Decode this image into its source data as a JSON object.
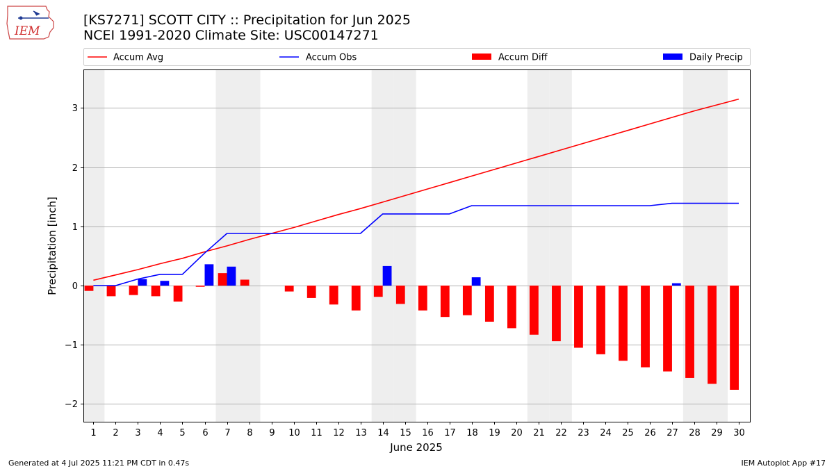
{
  "header": {
    "logo_text": "IEM",
    "title_line1": "[KS7271] SCOTT CITY :: Precipitation for Jun 2025",
    "title_line2": "NCEI 1991-2020 Climate Site: USC00147271"
  },
  "footer": {
    "left": "Generated at 4 Jul 2025 11:21 PM CDT in 0.47s",
    "right": "IEM Autoplot App #17"
  },
  "colors": {
    "accum_avg": "#ff0000",
    "accum_obs": "#0000ff",
    "accum_diff": "#ff0000",
    "daily_precip": "#0000ff",
    "weekend_shade": "#eeeeee",
    "grid": "#b0b0b0"
  },
  "chart_data": {
    "type": "bar",
    "xlabel": "June 2025",
    "ylabel": "Precipitation [inch]",
    "ylim": [
      -2.3,
      3.65
    ],
    "yticks": [
      -2,
      -1,
      0,
      1,
      2,
      3
    ],
    "ytick_labels": [
      "−2",
      "−1",
      "0",
      "1",
      "2",
      "3"
    ],
    "x": [
      1,
      2,
      3,
      4,
      5,
      6,
      7,
      8,
      9,
      10,
      11,
      12,
      13,
      14,
      15,
      16,
      17,
      18,
      19,
      20,
      21,
      22,
      23,
      24,
      25,
      26,
      27,
      28,
      29,
      30
    ],
    "weekend_days": [
      1,
      7,
      8,
      14,
      15,
      21,
      22,
      28,
      29
    ],
    "grid": "horizontal",
    "legend_position": "top",
    "series": [
      {
        "name": "Accum Avg",
        "kind": "line",
        "values": [
          0.09,
          0.18,
          0.27,
          0.37,
          0.46,
          0.57,
          0.67,
          0.78,
          0.88,
          0.98,
          1.09,
          1.2,
          1.3,
          1.41,
          1.52,
          1.63,
          1.74,
          1.85,
          1.96,
          2.07,
          2.18,
          2.29,
          2.4,
          2.51,
          2.62,
          2.73,
          2.84,
          2.95,
          3.05,
          3.15
        ]
      },
      {
        "name": "Accum Obs",
        "kind": "line",
        "values": [
          0,
          0,
          0.11,
          0.19,
          0.19,
          0.55,
          0.88,
          0.88,
          0.88,
          0.88,
          0.88,
          0.88,
          0.88,
          1.21,
          1.21,
          1.21,
          1.21,
          1.35,
          1.35,
          1.35,
          1.35,
          1.35,
          1.35,
          1.35,
          1.35,
          1.35,
          1.39,
          1.39,
          1.39,
          1.39
        ]
      },
      {
        "name": "Accum Diff",
        "kind": "bar",
        "values": [
          -0.09,
          -0.18,
          -0.16,
          -0.18,
          -0.27,
          -0.02,
          0.21,
          0.1,
          0,
          -0.1,
          -0.21,
          -0.32,
          -0.42,
          -0.19,
          -0.31,
          -0.42,
          -0.53,
          -0.5,
          -0.61,
          -0.72,
          -0.83,
          -0.94,
          -1.05,
          -1.16,
          -1.27,
          -1.38,
          -1.45,
          -1.56,
          -1.66,
          -1.76
        ]
      },
      {
        "name": "Daily Precip",
        "kind": "bar",
        "values": [
          0,
          0,
          0.11,
          0.08,
          0,
          0.36,
          0.32,
          0,
          0,
          0,
          0,
          0,
          0,
          0.33,
          0,
          0,
          0,
          0.14,
          0,
          0,
          0,
          0,
          0,
          0,
          0,
          0,
          0.04,
          0,
          0,
          0
        ]
      }
    ]
  }
}
